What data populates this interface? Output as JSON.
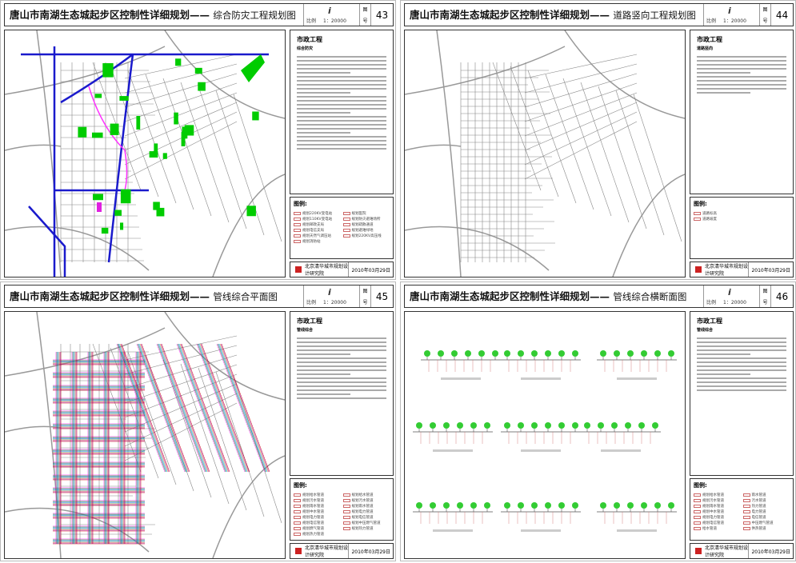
{
  "series_title": "唐山市南湖生态城起步区控制性详细规划——",
  "scale_label": "比例",
  "scale_value": "1：20000",
  "sheet_no_label": [
    "图",
    "号"
  ],
  "legend_heading": "图例:",
  "section_heading": "市政工程",
  "org": "北京清华城市规划设计研究院",
  "date": "2010年03月29日",
  "sheets": [
    {
      "subtitle": "综合防灾工程规划图",
      "number": "43",
      "section_sub": "综合防灾",
      "legend": [
        "规划220KV变电站",
        "规划110KV变电站",
        "规划邮政支局",
        "规划电信支局",
        "规划天然气调压站",
        "规划消防站",
        "规划医院",
        "规划防灾避难场所",
        "规划疏散通道",
        "规划避难绿地",
        "规划220KV高压线"
      ],
      "colors": {
        "road": "#1a1acc",
        "shelter": "#00cc00",
        "line": "#ff33ff"
      }
    },
    {
      "subtitle": "道路竖向工程规划图",
      "number": "44",
      "section_sub": "道路竖向",
      "legend": [
        "道路标高",
        "道路坡度"
      ]
    },
    {
      "subtitle": "管线综合平面图",
      "number": "45",
      "section_sub": "管线综合",
      "legend": [
        "规划给水管道",
        "规划污水管道",
        "规划雨水管道",
        "规划中水管道",
        "规划电力管道",
        "规划电信管道",
        "规划燃气管道",
        "规划热力管道",
        "规划给水管道",
        "规划污水管道",
        "规划雨水管道",
        "规划电力管道",
        "规划电信管道",
        "规划中压燃气管道",
        "规划热力管道"
      ]
    },
    {
      "subtitle": "管线综合横断面图",
      "number": "46",
      "section_sub": "管线综合",
      "legend": [
        "规划给水管道",
        "规划污水管道",
        "规划雨水管道",
        "规划中水管道",
        "规划电力管道",
        "规划电信管道",
        "给水管道",
        "雨水管道",
        "污水管道",
        "热力管道",
        "电力管道",
        "电信管道",
        "中压燃气管道",
        "供热管道"
      ]
    }
  ]
}
